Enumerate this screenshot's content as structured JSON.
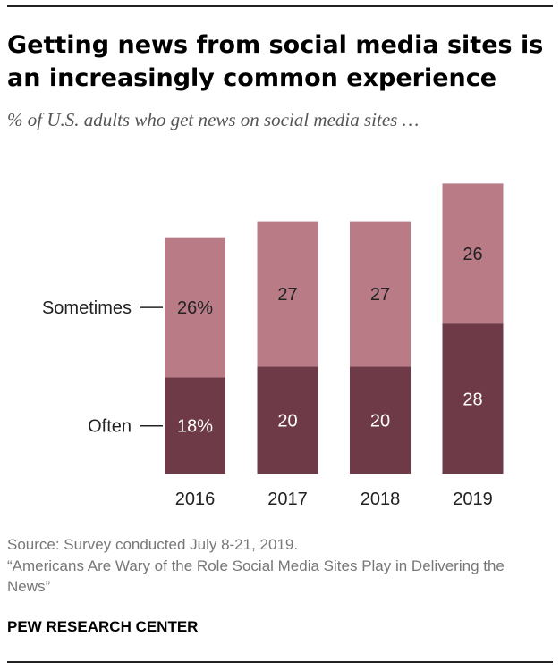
{
  "title": "Getting news from social media sites is an increasingly common experience",
  "subtitle": "% of U.S. adults who get news on social media sites …",
  "chart_data": {
    "type": "bar",
    "stacked": true,
    "categories": [
      "2016",
      "2017",
      "2018",
      "2019"
    ],
    "series": [
      {
        "name": "Often",
        "values": [
          18,
          20,
          20,
          28
        ],
        "labels": [
          "18%",
          "20",
          "20",
          "28"
        ],
        "color": "#6e3a47"
      },
      {
        "name": "Sometimes",
        "values": [
          26,
          27,
          27,
          26
        ],
        "labels": [
          "26%",
          "27",
          "27",
          "26"
        ],
        "color": "#b97c86"
      }
    ],
    "ylim": [
      0,
      54
    ],
    "grid": false,
    "legend": "left-inline"
  },
  "footer": {
    "source": "Source: Survey conducted July 8-21, 2019.",
    "report": "“Americans Are Wary of the Role Social Media Sites Play in Delivering the News”"
  },
  "brand": "PEW RESEARCH CENTER"
}
